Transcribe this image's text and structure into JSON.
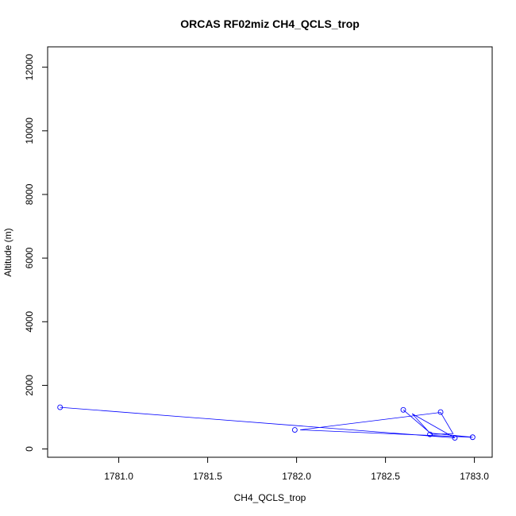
{
  "chart_data": {
    "type": "scatter",
    "title": "ORCAS RF02miz CH4_QCLS_trop",
    "xlabel": "CH4_QCLS_trop",
    "ylabel": "Altitude (m)",
    "xlim": [
      1780.6,
      1783.1
    ],
    "ylim": [
      -260,
      12640
    ],
    "xticks": [
      1781.0,
      1781.5,
      1782.0,
      1782.5,
      1783.0
    ],
    "xtick_labels": [
      "1781.0",
      "1781.5",
      "1782.0",
      "1782.5",
      "1783.0"
    ],
    "yticks": [
      0,
      2000,
      4000,
      6000,
      8000,
      10000,
      12000
    ],
    "ytick_labels": [
      "0",
      "2000",
      "4000",
      "6000",
      "8000",
      "10000",
      "12000"
    ],
    "grid": false,
    "series": [
      {
        "color": "#0000ff",
        "mode": "lines+markers",
        "x": [
          1780.67,
          1782.89,
          1782.65,
          1782.75,
          1782.99,
          1782.02,
          1782.81,
          1782.88,
          1782.76,
          1782.6
        ],
        "y": [
          1310,
          350,
          1110,
          500,
          370,
          600,
          1150,
          480,
          460,
          1230
        ]
      }
    ],
    "markers": {
      "x": [
        1780.67,
        1781.99,
        1782.6,
        1782.75,
        1782.81,
        1782.89,
        1782.99
      ],
      "y": [
        1310,
        600,
        1230,
        460,
        1160,
        350,
        370
      ]
    }
  }
}
